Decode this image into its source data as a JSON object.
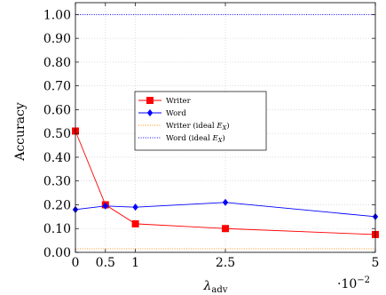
{
  "chart_data": {
    "type": "line",
    "xlabel": "λ",
    "xlabel_sub": "adv",
    "ylabel": "Accuracy",
    "x_multiplier": "·10",
    "x_multiplier_exp": "−2",
    "xlim": [
      0,
      5
    ],
    "ylim": [
      0,
      1.05
    ],
    "x_ticks": [
      0,
      0.5,
      1,
      2.5,
      5
    ],
    "x_tick_labels": [
      "0",
      "0.5",
      "1",
      "2.5",
      "5"
    ],
    "y_ticks": [
      0,
      0.1,
      0.2,
      0.3,
      0.4,
      0.5,
      0.6,
      0.7,
      0.8,
      0.9,
      1.0
    ],
    "y_tick_labels": [
      "0.00",
      "0.10",
      "0.20",
      "0.30",
      "0.40",
      "0.50",
      "0.60",
      "0.70",
      "0.80",
      "0.90",
      "1.00"
    ],
    "grid": true,
    "legend_position": "center-left",
    "series": [
      {
        "name": "Writer",
        "style": "line-square",
        "color": "#ff0000",
        "x": [
          0,
          0.5,
          1,
          2.5,
          5
        ],
        "y": [
          0.51,
          0.2,
          0.12,
          0.1,
          0.075
        ]
      },
      {
        "name": "Word",
        "style": "line-diamond",
        "color": "#0000ff",
        "x": [
          0,
          0.5,
          1,
          2.5,
          5
        ],
        "y": [
          0.18,
          0.195,
          0.19,
          0.21,
          0.15
        ]
      },
      {
        "name_prefix": "Writer (ideal ",
        "name_math": "E",
        "name_sub": "X",
        "name_suffix": ")",
        "style": "dotted",
        "color": "#ff8c00",
        "x": [
          0,
          5
        ],
        "y": [
          0.015,
          0.015
        ]
      },
      {
        "name_prefix": "Word (ideal ",
        "name_math": "E",
        "name_sub": "X",
        "name_suffix": ")",
        "style": "dotted",
        "color": "#0000ff",
        "x": [
          0,
          5
        ],
        "y": [
          1.0,
          1.0
        ]
      }
    ]
  }
}
